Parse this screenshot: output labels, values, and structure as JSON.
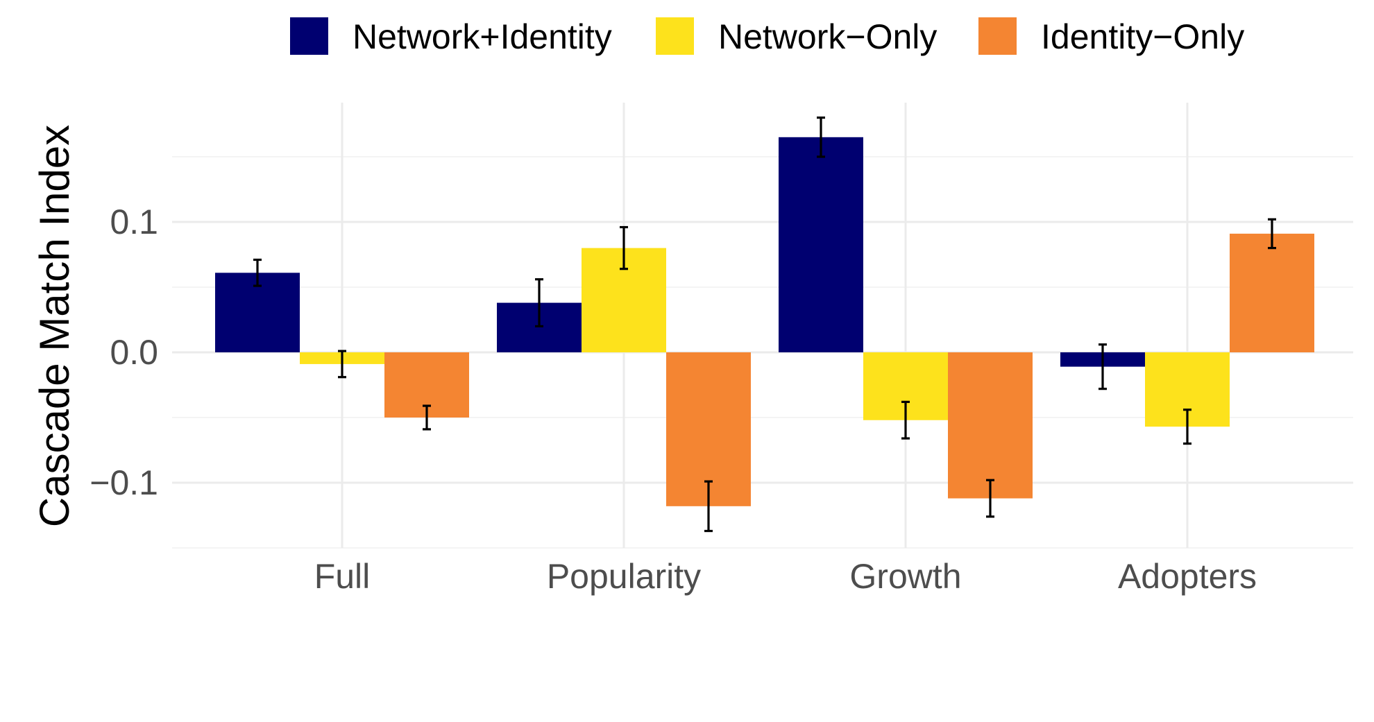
{
  "chart_data": {
    "type": "bar",
    "title": "",
    "xlabel": "",
    "ylabel": "Cascade Match Index",
    "categories": [
      "Full",
      "Popularity",
      "Growth",
      "Adopters"
    ],
    "series": [
      {
        "name": "Network+Identity",
        "color": "#000070",
        "values": [
          0.061,
          0.038,
          0.165,
          -0.011
        ],
        "errors": [
          0.01,
          0.018,
          0.015,
          0.017
        ]
      },
      {
        "name": "Network−Only",
        "color": "#FDE21C",
        "values": [
          -0.009,
          0.08,
          -0.052,
          -0.057
        ],
        "errors": [
          0.01,
          0.016,
          0.014,
          0.013
        ]
      },
      {
        "name": "Identity−Only",
        "color": "#F48532",
        "values": [
          -0.05,
          -0.118,
          -0.112,
          0.091
        ],
        "errors": [
          0.009,
          0.019,
          0.014,
          0.011
        ]
      }
    ],
    "ylim": [
      -0.15,
      0.19
    ],
    "yticks": [
      -0.1,
      0.0,
      0.1
    ],
    "ytick_labels": [
      "−0.1",
      "0.0",
      "0.1"
    ],
    "yminor": [
      -0.15,
      -0.05,
      0.05,
      0.15
    ],
    "grid": true,
    "legend_position": "top"
  }
}
